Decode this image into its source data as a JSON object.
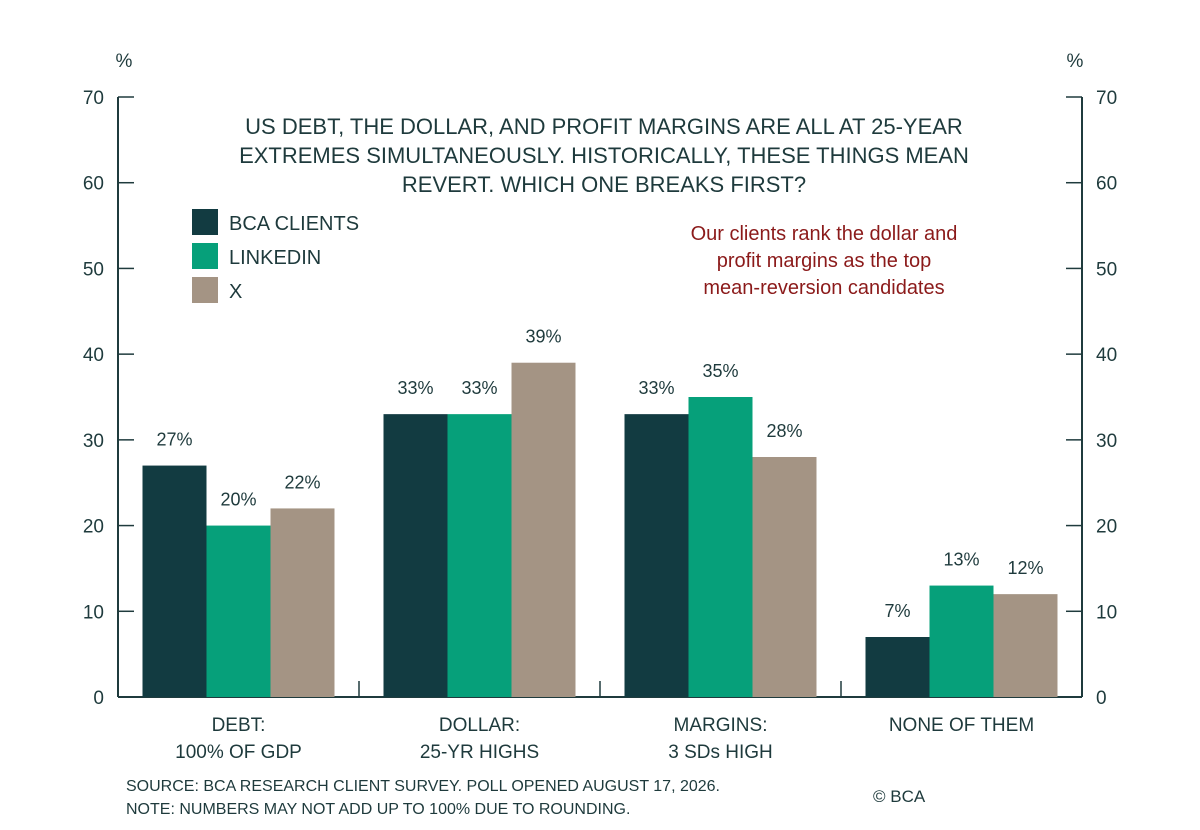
{
  "chart_data": {
    "type": "bar",
    "title_lines": [
      "US DEBT, THE DOLLAR, AND PROFIT MARGINS ARE ALL AT 25-YEAR",
      "EXTREMES SIMULTANEOUSLY. HISTORICALLY, THESE THINGS MEAN",
      "REVERT. WHICH ONE BREAKS FIRST?"
    ],
    "y_unit_left": "%",
    "y_unit_right": "%",
    "ylim": [
      0,
      70
    ],
    "y_ticks": [
      0,
      10,
      20,
      30,
      40,
      50,
      60,
      70
    ],
    "categories": [
      [
        "DEBT:",
        "100% OF GDP"
      ],
      [
        "DOLLAR:",
        "25-YR HIGHS"
      ],
      [
        "MARGINS:",
        "3 SDs HIGH"
      ],
      [
        "NONE OF THEM"
      ]
    ],
    "series": [
      {
        "name": "BCA CLIENTS",
        "color": "#123b41",
        "values": [
          27,
          33,
          33,
          7
        ]
      },
      {
        "name": "LINKEDIN",
        "color": "#06a07a",
        "values": [
          20,
          33,
          35,
          13
        ]
      },
      {
        "name": "X",
        "color": "#a49484",
        "values": [
          22,
          39,
          28,
          12
        ]
      }
    ],
    "data_label_suffix": "%",
    "annotation_lines": [
      "Our clients rank the dollar and",
      "profit margins as the top",
      "mean-reversion candidates"
    ],
    "annotation_color": "#8b1a1a",
    "legend_position": "top-left",
    "grid": false
  },
  "footer": {
    "source": "SOURCE: BCA RESEARCH CLIENT SURVEY. POLL OPENED AUGUST 17, 2026.",
    "note": "NOTE: NUMBERS MAY NOT ADD UP TO 100% DUE TO ROUNDING.",
    "copyright": "© BCA"
  }
}
